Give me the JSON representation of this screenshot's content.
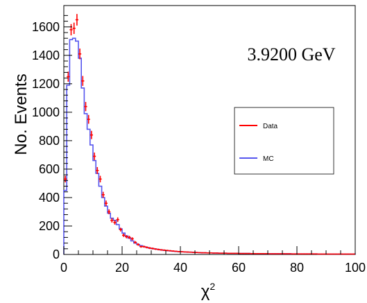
{
  "chart_data": {
    "type": "line",
    "annotation": "3.9200 GeV",
    "xlabel_base": "χ",
    "xlabel_sup": "2",
    "ylabel": "No. Events",
    "xlim": [
      0,
      100
    ],
    "ylim": [
      0,
      1750
    ],
    "x_ticks": [
      0,
      20,
      40,
      60,
      80,
      100
    ],
    "y_ticks": [
      0,
      200,
      400,
      600,
      800,
      1000,
      1200,
      1400,
      1600
    ],
    "legend_position": "right",
    "bin_width": 1,
    "series": [
      {
        "name": "Data",
        "kind": "points-with-error-bars",
        "color": "#ff0000",
        "x": [
          0.5,
          1.5,
          2.5,
          3.5,
          4.5,
          5.5,
          6.5,
          7.5,
          8.5,
          9.5,
          10.5,
          11.5,
          12.5,
          13.5,
          14.5,
          15.5,
          16.5,
          17.5,
          18.5,
          19.5,
          20.5,
          21.5,
          22.5,
          23.5,
          24.5,
          25.5,
          26.5,
          27.5,
          28.5,
          29.5,
          30.5,
          31.5,
          32.5,
          33.5,
          34.5,
          35.5,
          36.5,
          37.5,
          38.5,
          39.5,
          40.5,
          41.5,
          42.5,
          43.5,
          44.5,
          45.5,
          46.5,
          47.5,
          48.5,
          49.5,
          50.5,
          51.5,
          52.5,
          53.5,
          54.5,
          55.5,
          56.5,
          57.5,
          58.5,
          59.5,
          60.5,
          61.5,
          62.5,
          63.5,
          64.5,
          65.5,
          66.5,
          67.5,
          68.5,
          69.5,
          70.5,
          71.5,
          72.5,
          73.5,
          74.5,
          75.5,
          76.5,
          77.5,
          78.5,
          79.5,
          80.5,
          81.5,
          82.5,
          83.5,
          84.5,
          85.5,
          86.5,
          87.5,
          88.5,
          89.5,
          90.5,
          91.5,
          92.5,
          93.5,
          94.5,
          95.5,
          96.5,
          97.5,
          98.5,
          99.5
        ],
        "y": [
          530,
          1250,
          1580,
          1590,
          1650,
          1410,
          1220,
          1040,
          950,
          840,
          690,
          590,
          530,
          420,
          360,
          300,
          240,
          225,
          245,
          175,
          135,
          125,
          120,
          110,
          85,
          70,
          55,
          55,
          50,
          45,
          42,
          38,
          35,
          32,
          30,
          28,
          26,
          24,
          22,
          20,
          19,
          18,
          17,
          16,
          15,
          14,
          13,
          12,
          12,
          11,
          11,
          10,
          10,
          9,
          9,
          9,
          8,
          8,
          8,
          8,
          7,
          7,
          7,
          7,
          6,
          6,
          6,
          6,
          6,
          6,
          5,
          5,
          5,
          5,
          5,
          5,
          5,
          5,
          4,
          4,
          4,
          4,
          4,
          4,
          4,
          4,
          4,
          3,
          3,
          3,
          3,
          3,
          3,
          3,
          3,
          3,
          3,
          3,
          3,
          3
        ]
      },
      {
        "name": "MC",
        "kind": "step-histogram",
        "color": "#5555ee",
        "x": [
          0.5,
          1.5,
          2.5,
          3.5,
          4.5,
          5.5,
          6.5,
          7.5,
          8.5,
          9.5,
          10.5,
          11.5,
          12.5,
          13.5,
          14.5,
          15.5,
          16.5,
          17.5,
          18.5,
          19.5,
          20.5,
          21.5,
          22.5,
          23.5,
          24.5,
          25.5,
          26.5,
          27.5,
          28.5,
          29.5,
          30.5,
          31.5,
          32.5,
          33.5,
          34.5,
          35.5,
          36.5,
          37.5,
          38.5,
          39.5,
          40.5,
          41.5,
          42.5,
          43.5,
          44.5,
          45.5,
          46.5,
          47.5,
          48.5,
          49.5,
          50.5,
          51.5,
          52.5,
          53.5,
          54.5,
          55.5,
          56.5,
          57.5,
          58.5,
          59.5,
          60.5,
          61.5,
          62.5,
          63.5,
          64.5,
          65.5,
          66.5,
          67.5,
          68.5,
          69.5,
          70.5,
          71.5,
          72.5,
          73.5,
          74.5,
          75.5,
          76.5,
          77.5,
          78.5,
          79.5,
          80.5,
          81.5,
          82.5,
          83.5,
          84.5,
          85.5,
          86.5,
          87.5,
          88.5,
          89.5,
          90.5,
          91.5,
          92.5,
          93.5,
          94.5,
          95.5,
          96.5,
          97.5,
          98.5,
          99.5
        ],
        "y": [
          450,
          1190,
          1510,
          1520,
          1500,
          1380,
          1170,
          990,
          880,
          770,
          660,
          570,
          480,
          400,
          340,
          290,
          255,
          240,
          210,
          180,
          150,
          130,
          115,
          95,
          80,
          70,
          62,
          55,
          50,
          45,
          41,
          38,
          35,
          32,
          29,
          27,
          25,
          23,
          21,
          20,
          19,
          18,
          17,
          16,
          15,
          14,
          13,
          12,
          12,
          11,
          11,
          10,
          10,
          9,
          9,
          9,
          8,
          8,
          8,
          8,
          7,
          7,
          7,
          7,
          6,
          6,
          6,
          6,
          6,
          6,
          5,
          5,
          5,
          5,
          5,
          5,
          5,
          5,
          4,
          4,
          4,
          4,
          4,
          4,
          4,
          4,
          4,
          3,
          3,
          3,
          3,
          3,
          3,
          3,
          3,
          3,
          3,
          3,
          3,
          3
        ]
      }
    ]
  }
}
